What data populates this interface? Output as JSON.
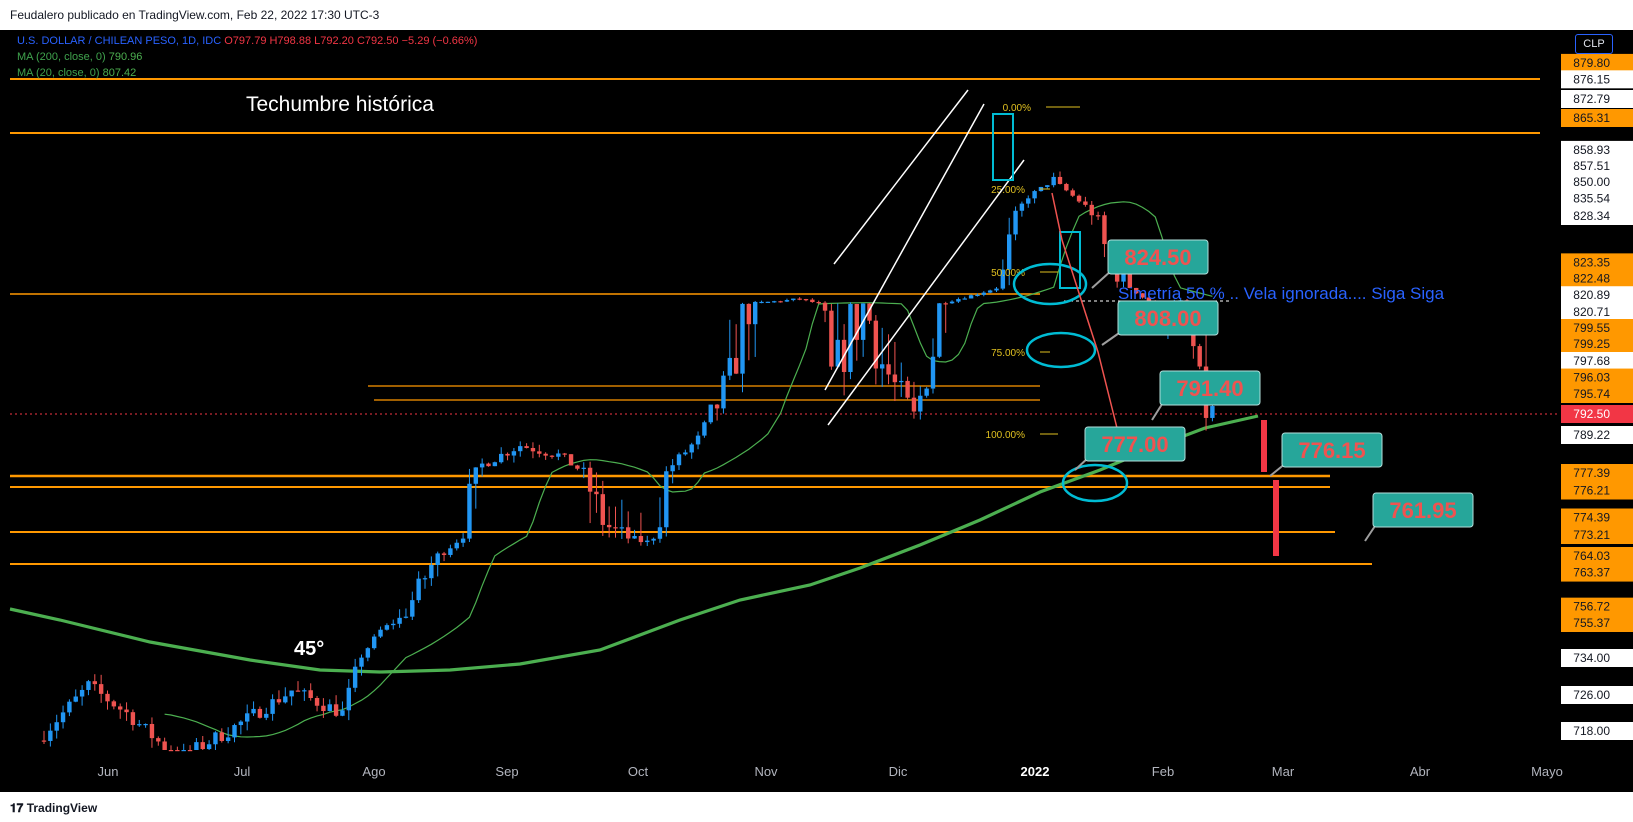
{
  "header": {
    "publisher_line": "Feudalero publicado en TradingView.com, Feb 22, 2022 17:30 UTC-3"
  },
  "legend": {
    "symbol": "U.S. DOLLAR / CHILEAN PESO, 1D, IDC",
    "ohlc": "O797.79 H798.88 L792.20 C792.50 −5.29 (−0.66%)",
    "ma200_label": "MA (200, close, 0)",
    "ma200_value": "790.96",
    "ma20_label": "MA (20, close, 0)",
    "ma20_value": "807.42"
  },
  "currency_badge": "CLP",
  "footer": {
    "brand": "TradingView"
  },
  "colors": {
    "up": "#2196f3",
    "down": "#ef5350",
    "level_line": "#ff9800",
    "ma200": "#4caf50",
    "ma20": "#4caf50",
    "annotation_box": "#26a69a",
    "annotation_text": "#ef5350",
    "fib": "#e0c020",
    "cyan_marker": "#00bcd4",
    "channel": "#ffffff",
    "price_marker": "#f23645"
  },
  "chart_data": {
    "type": "candlestick",
    "symbol": "USDCLP",
    "timeframe": "1D",
    "x_ticks": [
      "Jun",
      "Jul",
      "Ago",
      "Sep",
      "Oct",
      "Nov",
      "Dic",
      "2022",
      "Feb",
      "Mar",
      "Abr",
      "Mayo"
    ],
    "y_axis_labels": [
      {
        "v": 879.8,
        "t": "879.80",
        "hl": true
      },
      {
        "v": 876.15,
        "t": "876.15",
        "hl": false
      },
      {
        "v": 872.79,
        "t": "872.79",
        "hl": false
      },
      {
        "v": 865.31,
        "t": "865.31",
        "hl": true
      },
      {
        "v": 858.93,
        "t": "858.93",
        "hl": false
      },
      {
        "v": 857.51,
        "t": "857.51",
        "hl": false
      },
      {
        "v": 850.0,
        "t": "850.00",
        "hl": false
      },
      {
        "v": 835.54,
        "t": "835.54",
        "hl": false
      },
      {
        "v": 828.34,
        "t": "828.34",
        "hl": false
      },
      {
        "v": 823.35,
        "t": "823.35",
        "hl": true
      },
      {
        "v": 822.48,
        "t": "822.48",
        "hl": true
      },
      {
        "v": 820.89,
        "t": "820.89",
        "hl": false
      },
      {
        "v": 820.71,
        "t": "820.71",
        "hl": false
      },
      {
        "v": 799.55,
        "t": "799.55",
        "hl": true
      },
      {
        "v": 799.25,
        "t": "799.25",
        "hl": true
      },
      {
        "v": 797.68,
        "t": "797.68",
        "hl": false
      },
      {
        "v": 796.03,
        "t": "796.03",
        "hl": true
      },
      {
        "v": 795.74,
        "t": "795.74",
        "hl": true
      },
      {
        "v": 792.5,
        "t": "792.50",
        "hl": "price"
      },
      {
        "v": 789.22,
        "t": "789.22",
        "hl": false
      },
      {
        "v": 777.39,
        "t": "777.39",
        "hl": true
      },
      {
        "v": 776.21,
        "t": "776.21",
        "hl": true
      },
      {
        "v": 774.39,
        "t": "774.39",
        "hl": true
      },
      {
        "v": 773.21,
        "t": "773.21",
        "hl": true
      },
      {
        "v": 764.03,
        "t": "764.03",
        "hl": true
      },
      {
        "v": 763.37,
        "t": "763.37",
        "hl": true
      },
      {
        "v": 756.72,
        "t": "756.72",
        "hl": true
      },
      {
        "v": 755.37,
        "t": "755.37",
        "hl": true
      },
      {
        "v": 734.0,
        "t": "734.00",
        "hl": false
      },
      {
        "v": 726.0,
        "t": "726.00",
        "hl": false
      },
      {
        "v": 718.0,
        "t": "718.00",
        "hl": false
      }
    ],
    "last_price": 792.5,
    "ohlc_last": {
      "open": 797.79,
      "high": 798.88,
      "low": 792.2,
      "close": 792.5
    },
    "moving_averages": [
      {
        "name": "MA (200, close, 0)",
        "value": 790.96
      },
      {
        "name": "MA (20, close, 0)",
        "value": 807.42
      }
    ],
    "fibonacci_levels": [
      "0.00%",
      "25.00%",
      "50.00%",
      "75.00%",
      "100.00%"
    ],
    "annotations": {
      "title_text": "Techumbre histórica",
      "angle_text": "45°",
      "note_text": "Simetría 50 % .. Vela ignorada.... Siga Siga",
      "boxes": [
        "824.50",
        "808.00",
        "791.40",
        "777.00",
        "776.15",
        "761.95"
      ]
    }
  }
}
